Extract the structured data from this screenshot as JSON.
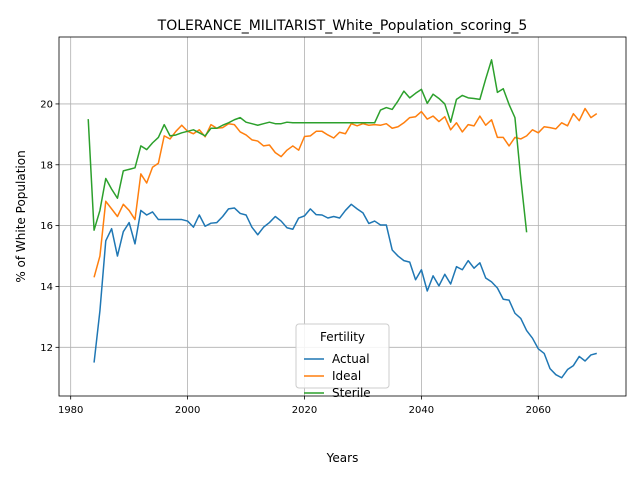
{
  "chart_data": {
    "type": "line",
    "title": "TOLERANCE_MILITARIST_White_Population_scoring_5",
    "xlabel": "Years",
    "ylabel": "% of White Population",
    "xlim": [
      1978,
      2075
    ],
    "ylim": [
      10.4,
      22.2
    ],
    "x_ticks": [
      1980,
      2000,
      2020,
      2040,
      2060
    ],
    "y_ticks": [
      12,
      14,
      16,
      18,
      20
    ],
    "grid": true,
    "legend": {
      "title": "Fertility",
      "placement": "lower center"
    },
    "series": [
      {
        "name": "Actual",
        "color": "#1f77b4",
        "points": [
          [
            1984,
            11.5
          ],
          [
            1985,
            13.2
          ],
          [
            1986,
            15.5
          ],
          [
            1987,
            15.9
          ],
          [
            1988,
            15.0
          ],
          [
            1989,
            15.8
          ],
          [
            1990,
            16.1
          ],
          [
            1991,
            15.4
          ],
          [
            1992,
            16.5
          ],
          [
            1993,
            16.35
          ],
          [
            1994,
            16.45
          ],
          [
            1995,
            16.2
          ],
          [
            1996,
            16.2
          ],
          [
            1997,
            16.2
          ],
          [
            1998,
            16.2
          ],
          [
            1999,
            16.2
          ],
          [
            2000,
            16.15
          ],
          [
            2001,
            15.95
          ],
          [
            2002,
            16.35
          ],
          [
            2003,
            15.98
          ],
          [
            2004,
            16.08
          ],
          [
            2005,
            16.1
          ],
          [
            2006,
            16.3
          ],
          [
            2007,
            16.55
          ],
          [
            2008,
            16.58
          ],
          [
            2009,
            16.4
          ],
          [
            2010,
            16.35
          ],
          [
            2011,
            15.95
          ],
          [
            2012,
            15.7
          ],
          [
            2013,
            15.95
          ],
          [
            2014,
            16.1
          ],
          [
            2015,
            16.3
          ],
          [
            2016,
            16.15
          ],
          [
            2017,
            15.93
          ],
          [
            2018,
            15.88
          ],
          [
            2019,
            16.25
          ],
          [
            2020,
            16.32
          ],
          [
            2021,
            16.55
          ],
          [
            2022,
            16.36
          ],
          [
            2023,
            16.35
          ],
          [
            2024,
            16.25
          ],
          [
            2025,
            16.3
          ],
          [
            2026,
            16.25
          ],
          [
            2027,
            16.5
          ],
          [
            2028,
            16.7
          ],
          [
            2029,
            16.55
          ],
          [
            2030,
            16.42
          ],
          [
            2031,
            16.07
          ],
          [
            2032,
            16.15
          ],
          [
            2033,
            16.02
          ],
          [
            2034,
            16.02
          ],
          [
            2035,
            15.2
          ],
          [
            2036,
            15.0
          ],
          [
            2037,
            14.85
          ],
          [
            2038,
            14.8
          ],
          [
            2039,
            14.22
          ],
          [
            2040,
            14.55
          ],
          [
            2041,
            13.85
          ],
          [
            2042,
            14.35
          ],
          [
            2043,
            14.02
          ],
          [
            2044,
            14.4
          ],
          [
            2045,
            14.08
          ],
          [
            2046,
            14.65
          ],
          [
            2047,
            14.55
          ],
          [
            2048,
            14.85
          ],
          [
            2049,
            14.6
          ],
          [
            2050,
            14.78
          ],
          [
            2051,
            14.28
          ],
          [
            2052,
            14.15
          ],
          [
            2053,
            13.95
          ],
          [
            2054,
            13.58
          ],
          [
            2055,
            13.55
          ],
          [
            2056,
            13.12
          ],
          [
            2057,
            12.95
          ],
          [
            2058,
            12.55
          ],
          [
            2059,
            12.3
          ],
          [
            2060,
            11.95
          ],
          [
            2061,
            11.8
          ],
          [
            2062,
            11.3
          ],
          [
            2063,
            11.1
          ],
          [
            2064,
            11.0
          ],
          [
            2065,
            11.27
          ],
          [
            2066,
            11.4
          ],
          [
            2067,
            11.7
          ],
          [
            2068,
            11.55
          ],
          [
            2069,
            11.75
          ],
          [
            2070,
            11.8
          ]
        ]
      },
      {
        "name": "Ideal",
        "color": "#ff7f0e",
        "points": [
          [
            1984,
            14.3
          ],
          [
            1985,
            15.0
          ],
          [
            1986,
            16.8
          ],
          [
            1987,
            16.55
          ],
          [
            1988,
            16.3
          ],
          [
            1989,
            16.7
          ],
          [
            1990,
            16.5
          ],
          [
            1991,
            16.2
          ],
          [
            1992,
            17.7
          ],
          [
            1993,
            17.4
          ],
          [
            1994,
            17.92
          ],
          [
            1995,
            18.05
          ],
          [
            1996,
            18.95
          ],
          [
            1997,
            18.85
          ],
          [
            1998,
            19.1
          ],
          [
            1999,
            19.3
          ],
          [
            2000,
            19.1
          ],
          [
            2001,
            19.02
          ],
          [
            2002,
            19.15
          ],
          [
            2003,
            18.92
          ],
          [
            2004,
            19.32
          ],
          [
            2005,
            19.2
          ],
          [
            2006,
            19.22
          ],
          [
            2007,
            19.35
          ],
          [
            2008,
            19.32
          ],
          [
            2009,
            19.08
          ],
          [
            2010,
            18.98
          ],
          [
            2011,
            18.82
          ],
          [
            2012,
            18.78
          ],
          [
            2013,
            18.62
          ],
          [
            2014,
            18.65
          ],
          [
            2015,
            18.4
          ],
          [
            2016,
            18.27
          ],
          [
            2017,
            18.48
          ],
          [
            2018,
            18.62
          ],
          [
            2019,
            18.48
          ],
          [
            2020,
            18.93
          ],
          [
            2021,
            18.95
          ],
          [
            2022,
            19.1
          ],
          [
            2023,
            19.1
          ],
          [
            2024,
            18.98
          ],
          [
            2025,
            18.88
          ],
          [
            2026,
            19.07
          ],
          [
            2027,
            19.02
          ],
          [
            2028,
            19.35
          ],
          [
            2029,
            19.28
          ],
          [
            2030,
            19.35
          ],
          [
            2031,
            19.3
          ],
          [
            2032,
            19.32
          ],
          [
            2033,
            19.3
          ],
          [
            2034,
            19.35
          ],
          [
            2035,
            19.2
          ],
          [
            2036,
            19.25
          ],
          [
            2037,
            19.38
          ],
          [
            2038,
            19.55
          ],
          [
            2039,
            19.58
          ],
          [
            2040,
            19.75
          ],
          [
            2041,
            19.5
          ],
          [
            2042,
            19.6
          ],
          [
            2043,
            19.42
          ],
          [
            2044,
            19.58
          ],
          [
            2045,
            19.15
          ],
          [
            2046,
            19.38
          ],
          [
            2047,
            19.08
          ],
          [
            2048,
            19.32
          ],
          [
            2049,
            19.28
          ],
          [
            2050,
            19.6
          ],
          [
            2051,
            19.3
          ],
          [
            2052,
            19.48
          ],
          [
            2053,
            18.9
          ],
          [
            2054,
            18.9
          ],
          [
            2055,
            18.62
          ],
          [
            2056,
            18.9
          ],
          [
            2057,
            18.85
          ],
          [
            2058,
            18.95
          ],
          [
            2059,
            19.15
          ],
          [
            2060,
            19.05
          ],
          [
            2061,
            19.25
          ],
          [
            2062,
            19.22
          ],
          [
            2063,
            19.18
          ],
          [
            2064,
            19.38
          ],
          [
            2065,
            19.28
          ],
          [
            2066,
            19.68
          ],
          [
            2067,
            19.45
          ],
          [
            2068,
            19.85
          ],
          [
            2069,
            19.55
          ],
          [
            2070,
            19.68
          ]
        ]
      },
      {
        "name": "Sterile",
        "color": "#2ca02c",
        "points": [
          [
            1983,
            19.5
          ],
          [
            1984,
            15.85
          ],
          [
            1985,
            16.5
          ],
          [
            1986,
            17.55
          ],
          [
            1987,
            17.2
          ],
          [
            1988,
            16.9
          ],
          [
            1989,
            17.8
          ],
          [
            1990,
            17.85
          ],
          [
            1991,
            17.9
          ],
          [
            1992,
            18.62
          ],
          [
            1993,
            18.5
          ],
          [
            1994,
            18.72
          ],
          [
            1995,
            18.9
          ],
          [
            1996,
            19.32
          ],
          [
            1997,
            18.95
          ],
          [
            1998,
            18.98
          ],
          [
            1999,
            19.05
          ],
          [
            2000,
            19.1
          ],
          [
            2001,
            19.15
          ],
          [
            2002,
            19.05
          ],
          [
            2003,
            18.95
          ],
          [
            2004,
            19.2
          ],
          [
            2005,
            19.2
          ],
          [
            2006,
            19.3
          ],
          [
            2007,
            19.38
          ],
          [
            2008,
            19.48
          ],
          [
            2009,
            19.55
          ],
          [
            2010,
            19.4
          ],
          [
            2011,
            19.35
          ],
          [
            2012,
            19.3
          ],
          [
            2013,
            19.35
          ],
          [
            2014,
            19.4
          ],
          [
            2015,
            19.35
          ],
          [
            2016,
            19.35
          ],
          [
            2017,
            19.4
          ],
          [
            2018,
            19.38
          ],
          [
            2019,
            19.38
          ],
          [
            2020,
            19.38
          ],
          [
            2021,
            19.38
          ],
          [
            2022,
            19.38
          ],
          [
            2023,
            19.38
          ],
          [
            2024,
            19.38
          ],
          [
            2025,
            19.38
          ],
          [
            2026,
            19.38
          ],
          [
            2027,
            19.38
          ],
          [
            2028,
            19.38
          ],
          [
            2029,
            19.38
          ],
          [
            2030,
            19.38
          ],
          [
            2031,
            19.38
          ],
          [
            2032,
            19.38
          ],
          [
            2033,
            19.8
          ],
          [
            2034,
            19.88
          ],
          [
            2035,
            19.82
          ],
          [
            2036,
            20.1
          ],
          [
            2037,
            20.42
          ],
          [
            2038,
            20.2
          ],
          [
            2039,
            20.35
          ],
          [
            2040,
            20.48
          ],
          [
            2041,
            20.02
          ],
          [
            2042,
            20.32
          ],
          [
            2043,
            20.18
          ],
          [
            2044,
            20.0
          ],
          [
            2045,
            19.4
          ],
          [
            2046,
            20.15
          ],
          [
            2047,
            20.28
          ],
          [
            2048,
            20.2
          ],
          [
            2049,
            20.18
          ],
          [
            2050,
            20.15
          ],
          [
            2051,
            20.82
          ],
          [
            2052,
            21.45
          ],
          [
            2053,
            20.38
          ],
          [
            2054,
            20.5
          ],
          [
            2055,
            19.98
          ],
          [
            2056,
            19.55
          ],
          [
            2057,
            17.55
          ],
          [
            2058,
            15.78
          ]
        ]
      }
    ]
  }
}
